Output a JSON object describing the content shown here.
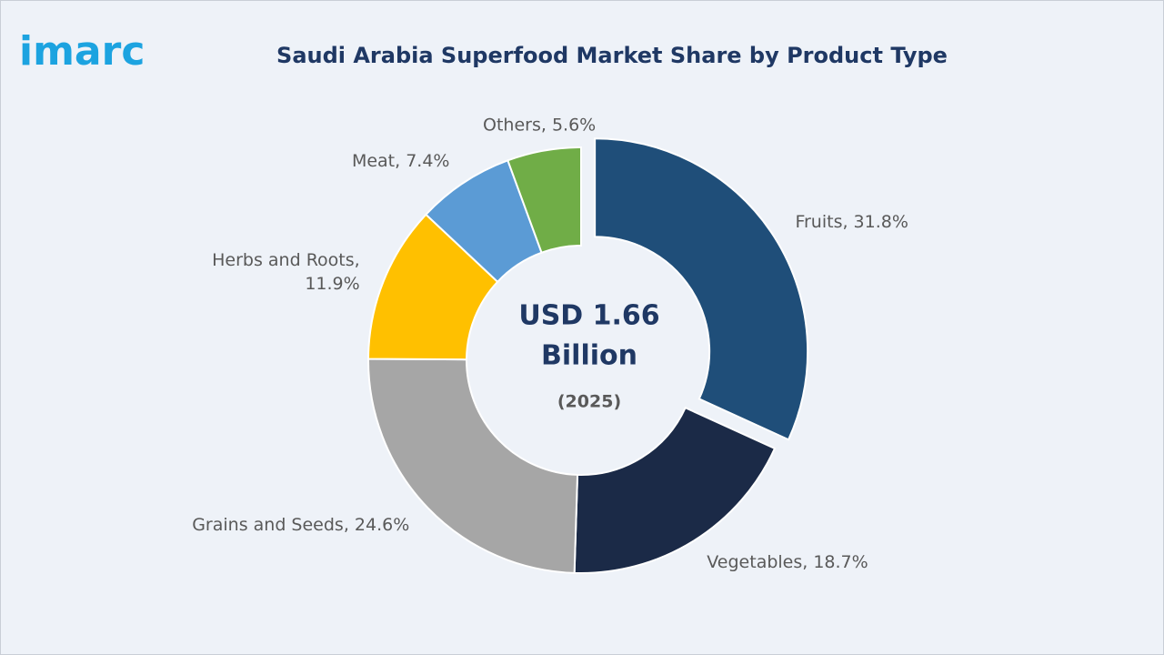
{
  "logo": "imarc",
  "chart_data": {
    "type": "donut",
    "title": "Saudi Arabia Superfood Market Share by Product Type",
    "center_text": [
      "USD 1.66",
      "Billion"
    ],
    "center_subtext": "(2025)",
    "values": [
      31.8,
      18.7,
      24.6,
      11.9,
      7.4,
      5.6
    ],
    "value_labels": [
      "Fruits, 31.8%",
      "Vegetables, 18.7%",
      "Grains and Seeds, 24.6%",
      "Herbs and Roots,\n11.9%",
      "Meat, 7.4%",
      "Others, 5.6%"
    ],
    "colors": [
      "#1f4e79",
      "#1b2a47",
      "#a6a6a6",
      "#ffc000",
      "#5b9bd5",
      "#70ad47"
    ],
    "exploded": [
      true,
      false,
      false,
      false,
      false,
      false
    ]
  }
}
